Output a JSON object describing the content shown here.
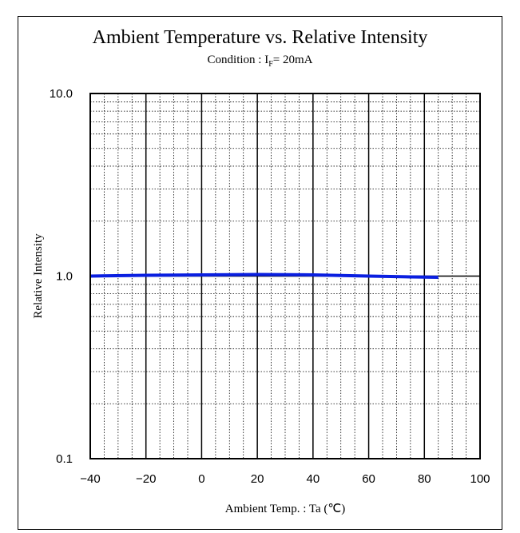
{
  "chart_data": {
    "type": "line",
    "title": "Ambient Temperature vs. Relative Intensity",
    "subtitle": {
      "prefix": "Condition : I",
      "subscript": "F",
      "suffix": "= 20mA"
    },
    "xlabel": "Ambient Temp. : Ta (℃)",
    "ylabel": "Relative Intensity",
    "x_scale": "linear",
    "y_scale": "log",
    "xlim": [
      -40,
      100
    ],
    "ylim": [
      0.1,
      10.0
    ],
    "x_ticks": [
      -40,
      -20,
      0,
      20,
      40,
      60,
      80,
      100
    ],
    "x_tick_labels": [
      "−40",
      "−20",
      "0",
      "20",
      "40",
      "60",
      "80",
      "100"
    ],
    "y_ticks": [
      0.1,
      1.0,
      10.0
    ],
    "y_tick_labels": [
      "0.1",
      "1.0",
      "10.0"
    ],
    "grid": true,
    "series": [
      {
        "color": "#0a1fe0",
        "x": [
          -40,
          -20,
          0,
          20,
          40,
          60,
          75,
          85
        ],
        "y": [
          1.0,
          1.01,
          1.015,
          1.02,
          1.015,
          1.0,
          0.99,
          0.985
        ]
      }
    ]
  }
}
